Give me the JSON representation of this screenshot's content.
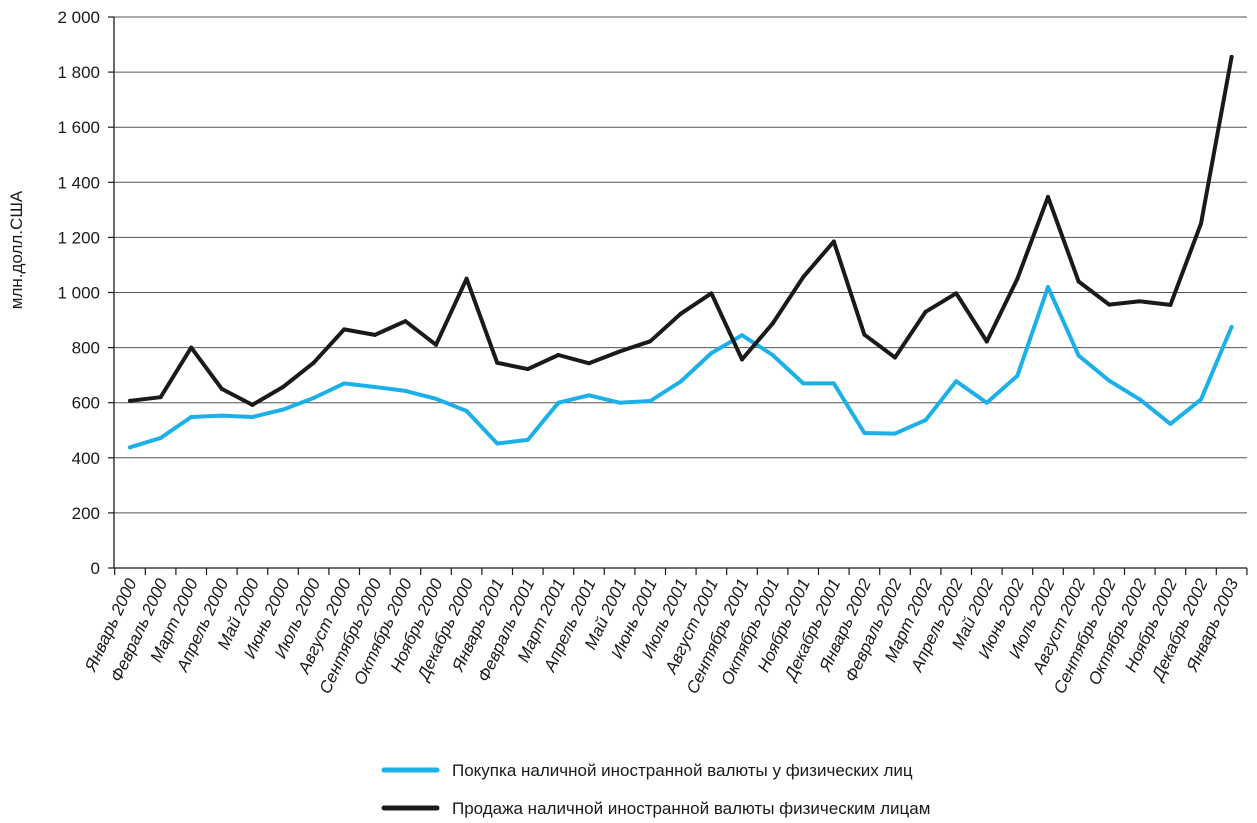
{
  "chart_data": {
    "type": "line",
    "title": "",
    "xlabel": "",
    "ylabel": "млн.долл.США",
    "ylim": [
      0,
      2000
    ],
    "yticks": [
      0,
      200,
      400,
      600,
      800,
      1000,
      1200,
      1400,
      1600,
      1800,
      2000
    ],
    "ytick_labels": [
      "0",
      "200",
      "400",
      "600",
      "800",
      "1 000",
      "1 200",
      "1 400",
      "1 600",
      "1 800",
      "2 000"
    ],
    "grid": "horizontal",
    "legend": "bottom",
    "categories": [
      "Январь 2000",
      "Февраль 2000",
      "Март 2000",
      "Апрель 2000",
      "Май 2000",
      "Июнь 2000",
      "Июль 2000",
      "Август 2000",
      "Сентябрь 2000",
      "Октябрь 2000",
      "Ноябрь 2000",
      "Декабрь 2000",
      "Январь 2001",
      "Февраль 2001",
      "Март 2001",
      "Апрель 2001",
      "Май 2001",
      "Июнь 2001",
      "Июль 2001",
      "Август 2001",
      "Сентябрь 2001",
      "Октябрь 2001",
      "Ноябрь 2001",
      "Декабрь 2001",
      "Январь 2002",
      "Февраль 2002",
      "Март 2002",
      "Апрель 2002",
      "Май 2002",
      "Июнь 2002",
      "Июль 2002",
      "Август 2002",
      "Сентябрь 2002",
      "Октябрь 2002",
      "Ноябрь 2002",
      "Декабрь 2002",
      "Январь 2003"
    ],
    "series": [
      {
        "name": "Покупка наличной иностранной валюты у физических лиц",
        "color": "#1bb0e8",
        "values": [
          438,
          472,
          548,
          553,
          548,
          575,
          617,
          670,
          657,
          643,
          614,
          570,
          452,
          465,
          600,
          627,
          600,
          606,
          677,
          780,
          845,
          773,
          670,
          670,
          490,
          488,
          537,
          678,
          600,
          698,
          1020,
          771,
          680,
          612,
          523,
          612,
          875
        ]
      },
      {
        "name": "Продажа наличной иностранной валюты физическим лицам",
        "color": "#1a1a1a",
        "values": [
          607,
          620,
          800,
          650,
          592,
          657,
          745,
          866,
          846,
          896,
          810,
          1050,
          745,
          722,
          773,
          743,
          786,
          823,
          923,
          997,
          757,
          887,
          1056,
          1185,
          847,
          764,
          930,
          997,
          822,
          1050,
          1347,
          1040,
          956,
          968,
          955,
          1250,
          1855
        ]
      }
    ]
  }
}
